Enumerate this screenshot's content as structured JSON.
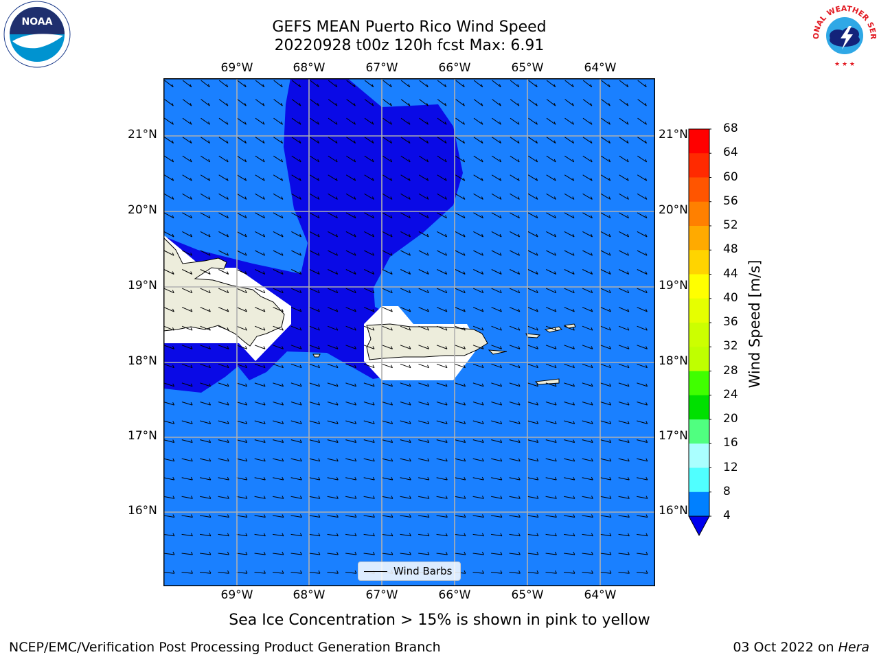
{
  "title_line1": "GEFS MEAN Puerto Rico Wind Speed",
  "title_line2": "20220928 t00z 120h fcst   Max: 6.91",
  "lon_ticks": [
    "69°W",
    "68°W",
    "67°W",
    "66°W",
    "65°W",
    "64°W"
  ],
  "lat_ticks": [
    "21°N",
    "20°N",
    "19°N",
    "18°N",
    "17°N",
    "16°N"
  ],
  "colorbar": {
    "label": "Wind Speed [m/s]",
    "ticks": [
      "68",
      "64",
      "60",
      "56",
      "52",
      "48",
      "44",
      "40",
      "36",
      "32",
      "28",
      "24",
      "20",
      "16",
      "12",
      "8",
      "4"
    ],
    "colors": [
      "#ff0000",
      "#ff2a00",
      "#ff5500",
      "#ff7f00",
      "#ffaa00",
      "#ffd400",
      "#ffff00",
      "#eaff00",
      "#d5ff00",
      "#bfff00",
      "#55ff00",
      "#00ea00",
      "#00c855",
      "#50ff80",
      "#aaffff",
      "#50ffff",
      "#00ffff",
      "#00e0ea",
      "#0080ff"
    ],
    "extend_color": "#0000ee"
  },
  "legend": {
    "label": "Wind Barbs"
  },
  "caption": "Sea Ice Concentration > 15% is shown in pink to yellow",
  "footer_left": "NCEP/EMC/Verification Post Processing Product Generation Branch",
  "footer_right_date": "03 Oct 2022 on ",
  "footer_right_host": "Hera",
  "logos": {
    "left": "NOAA",
    "right": "NATIONAL WEATHER SERVICE"
  },
  "colors": {
    "ocean_wind": "#1a80ff",
    "low_wind": "#0a0ae6",
    "land": "#ededdc",
    "grid": "#b0b0b0"
  }
}
